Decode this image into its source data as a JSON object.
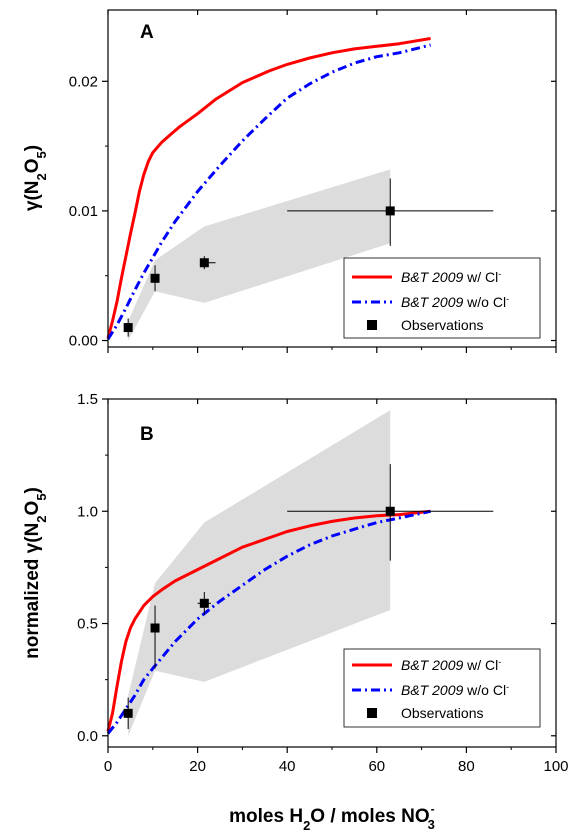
{
  "colors": {
    "with_cl": "#ff0000",
    "without_cl": "#0000ff",
    "observations": "#000000",
    "band": "#dcdcdc"
  },
  "x_axis": {
    "label_prefix": "moles H",
    "label_sub": "2",
    "label_mid": "O / moles NO",
    "label_sup": "-",
    "label_sub2": "3"
  },
  "chart_data": [
    {
      "type": "line",
      "panel_label": "A",
      "ylabel_prefix": "γ(N",
      "ylabel_sub1": "2",
      "ylabel_mid": "O",
      "ylabel_sub2": "5",
      "ylabel_suffix": ")",
      "xlim": [
        0,
        100
      ],
      "ylim": [
        -0.0005,
        0.0255
      ],
      "xticks": [
        0,
        20,
        40,
        60,
        80,
        100
      ],
      "yticks": [
        0.0,
        0.01,
        0.02
      ],
      "ytick_labels": [
        "0.00",
        "0.01",
        "0.02"
      ],
      "series": [
        {
          "name": "B&T 2009 w/ Cl-",
          "style": "solid",
          "x": [
            0,
            1,
            2,
            3,
            4,
            5,
            6,
            7,
            8,
            9,
            10,
            12,
            14,
            16,
            20,
            24,
            30,
            36,
            40,
            45,
            50,
            55,
            60,
            65,
            72
          ],
          "y": [
            0.0002,
            0.0015,
            0.003,
            0.0048,
            0.0065,
            0.0082,
            0.0098,
            0.0115,
            0.0128,
            0.0138,
            0.0145,
            0.0153,
            0.0159,
            0.0165,
            0.0175,
            0.0186,
            0.0199,
            0.0208,
            0.0213,
            0.0218,
            0.0222,
            0.0225,
            0.0227,
            0.0229,
            0.0233
          ]
        },
        {
          "name": "B&T 2009 w/o Cl-",
          "style": "dashdot",
          "x": [
            0,
            2,
            4,
            6,
            8,
            10,
            12,
            15,
            20,
            25,
            30,
            35,
            40,
            45,
            50,
            55,
            60,
            65,
            72
          ],
          "y": [
            0.0001,
            0.0012,
            0.0025,
            0.0039,
            0.0052,
            0.0064,
            0.0076,
            0.0092,
            0.0115,
            0.0135,
            0.0154,
            0.0171,
            0.0187,
            0.0198,
            0.0207,
            0.0214,
            0.0219,
            0.0222,
            0.0228
          ]
        }
      ],
      "observations": {
        "name": "Observations",
        "x": [
          4.5,
          10.5,
          21.5,
          63.0
        ],
        "y": [
          0.001,
          0.0048,
          0.006,
          0.01
        ],
        "xerr_low": [
          4.5,
          10.5,
          21.5,
          40.0
        ],
        "xerr_high": [
          4.5,
          10.5,
          24.0,
          86.0
        ],
        "yerr_low": [
          0.0003,
          0.0038,
          0.0055,
          0.0073
        ],
        "yerr_high": [
          0.0017,
          0.0058,
          0.0065,
          0.0125
        ]
      },
      "band": {
        "upper_x": [
          4.5,
          10.5,
          21.5,
          63.0
        ],
        "upper_y": [
          0.0015,
          0.0062,
          0.0088,
          0.0132
        ],
        "lower_x": [
          63.0,
          21.5,
          10.5,
          4.5
        ],
        "lower_y": [
          0.0075,
          0.0029,
          0.0038,
          0.0
        ]
      },
      "legend": {
        "position": "lower-right",
        "entries": [
          {
            "italic": "B&T 2009",
            "plain": " w/ Cl",
            "sup": "-"
          },
          {
            "italic": "B&T 2009",
            "plain": " w/o Cl",
            "sup": "-"
          },
          {
            "italic": "",
            "plain": "Observations",
            "sup": ""
          }
        ]
      }
    },
    {
      "type": "line",
      "panel_label": "B",
      "ylabel_prefix": "normalized γ(N",
      "ylabel_sub1": "2",
      "ylabel_mid": "O",
      "ylabel_sub2": "5",
      "ylabel_suffix": ")",
      "xlim": [
        0,
        100
      ],
      "ylim": [
        -0.05,
        1.5
      ],
      "xticks": [
        0,
        20,
        40,
        60,
        80,
        100
      ],
      "xtick_labels": [
        "0",
        "20",
        "40",
        "60",
        "80",
        "100"
      ],
      "yticks": [
        0.0,
        0.5,
        1.0,
        1.5
      ],
      "ytick_labels": [
        "0.0",
        "0.5",
        "1.0",
        "1.5"
      ],
      "series": [
        {
          "name": "B&T 2009 w/ Cl-",
          "style": "solid",
          "x": [
            0,
            1,
            2,
            3,
            4,
            5,
            6,
            8,
            10,
            12,
            15,
            20,
            25,
            30,
            40,
            45,
            50,
            55,
            60,
            65,
            72
          ],
          "y": [
            0.02,
            0.1,
            0.22,
            0.33,
            0.42,
            0.48,
            0.52,
            0.58,
            0.62,
            0.65,
            0.69,
            0.74,
            0.79,
            0.84,
            0.91,
            0.935,
            0.955,
            0.97,
            0.98,
            0.985,
            1.0
          ]
        },
        {
          "name": "B&T 2009 w/o Cl-",
          "style": "dashdot",
          "x": [
            0,
            2,
            4,
            6,
            8,
            10,
            15,
            20,
            25,
            30,
            35,
            40,
            45,
            50,
            55,
            60,
            65,
            72
          ],
          "y": [
            0.01,
            0.06,
            0.12,
            0.18,
            0.25,
            0.3,
            0.42,
            0.52,
            0.6,
            0.67,
            0.74,
            0.8,
            0.85,
            0.89,
            0.92,
            0.95,
            0.97,
            1.0
          ]
        }
      ],
      "observations": {
        "name": "Observations",
        "x": [
          4.5,
          10.5,
          21.5,
          63.0
        ],
        "y": [
          0.1,
          0.48,
          0.59,
          1.0
        ],
        "xerr_low": [
          4.5,
          10.5,
          20.0,
          40.0
        ],
        "xerr_high": [
          4.5,
          10.5,
          23.0,
          86.0
        ],
        "yerr_low": [
          0.03,
          0.3,
          0.54,
          0.78
        ],
        "yerr_high": [
          0.17,
          0.58,
          0.64,
          1.21
        ]
      },
      "band": {
        "upper_x": [
          4.5,
          10.5,
          21.5,
          63.0
        ],
        "upper_y": [
          0.18,
          0.68,
          0.95,
          1.45
        ],
        "lower_x": [
          63.0,
          21.5,
          10.5,
          4.5
        ],
        "lower_y": [
          0.56,
          0.24,
          0.29,
          0.0
        ]
      },
      "legend": {
        "position": "lower-right",
        "entries": [
          {
            "italic": "B&T 2009",
            "plain": " w/ Cl",
            "sup": "-"
          },
          {
            "italic": "B&T 2009",
            "plain": " w/o Cl",
            "sup": "-"
          },
          {
            "italic": "",
            "plain": "Observations",
            "sup": ""
          }
        ]
      }
    }
  ]
}
